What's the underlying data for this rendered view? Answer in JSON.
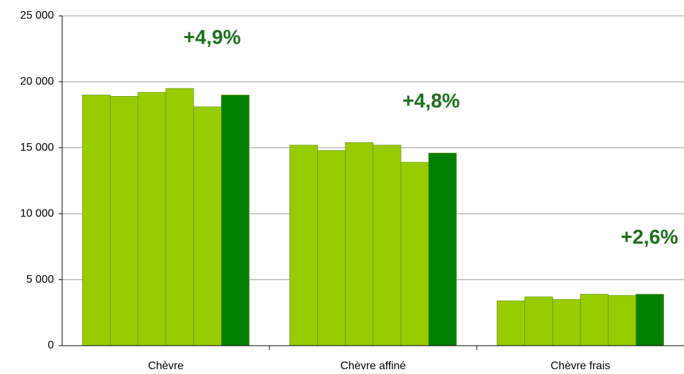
{
  "chart_data": {
    "type": "bar",
    "categories": [
      "Chèvre",
      "Chèvre affiné",
      "Chèvre frais"
    ],
    "series": [
      {
        "color": "#99cc00",
        "values": [
          19000,
          15200,
          3400
        ]
      },
      {
        "color": "#99cc00",
        "values": [
          18900,
          14800,
          3700
        ]
      },
      {
        "color": "#99cc00",
        "values": [
          19200,
          15400,
          3500
        ]
      },
      {
        "color": "#99cc00",
        "values": [
          19500,
          15200,
          3900
        ]
      },
      {
        "color": "#99cc00",
        "values": [
          18100,
          13900,
          3800
        ]
      },
      {
        "color": "#008000",
        "values": [
          19000,
          14600,
          3900
        ]
      }
    ],
    "annotations": [
      "+4,9%",
      "+4,8%",
      "+2,6%"
    ],
    "annotation_color": "#1e6e1e",
    "ylim": [
      0,
      25000
    ],
    "yticks": [
      {
        "value": 0,
        "label": "0"
      },
      {
        "value": 5000,
        "label": "5 000"
      },
      {
        "value": 10000,
        "label": "10 000"
      },
      {
        "value": 15000,
        "label": "15 000"
      },
      {
        "value": 20000,
        "label": "20 000"
      },
      {
        "value": 25000,
        "label": "25 000"
      }
    ],
    "grid": true
  }
}
